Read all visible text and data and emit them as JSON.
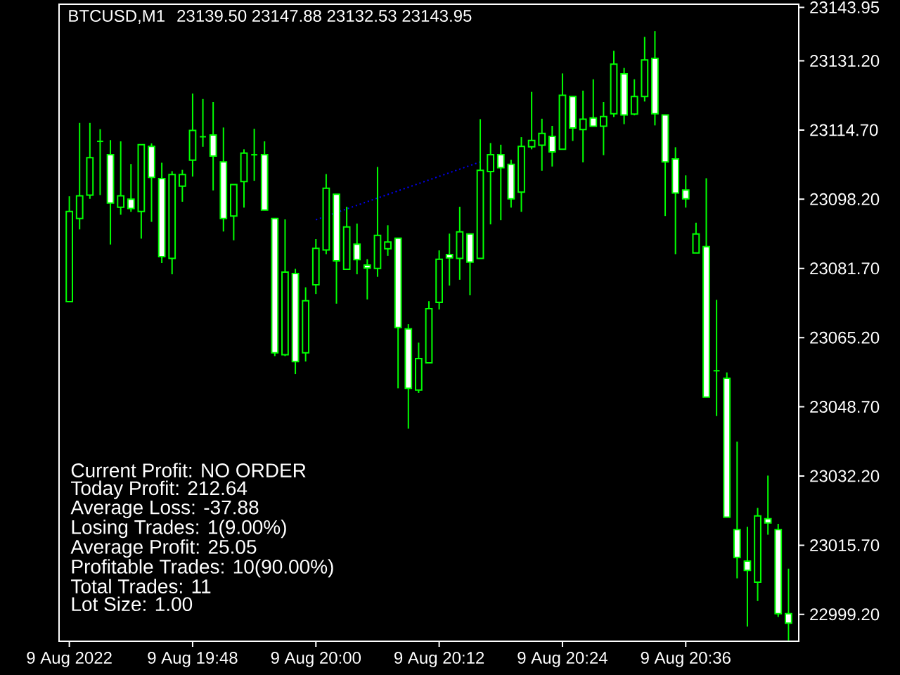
{
  "chart_data": {
    "type": "candlestick",
    "title": "BTCUSD,M1",
    "subtitle": "23139.50 23147.88 23132.53 23143.95",
    "color": "#00ff00",
    "x": [
      "2022-08-09T19:36",
      "2022-08-09T19:37",
      "2022-08-09T19:38",
      "2022-08-09T19:39",
      "2022-08-09T19:40",
      "2022-08-09T19:41",
      "2022-08-09T19:42",
      "2022-08-09T19:43",
      "2022-08-09T19:44",
      "2022-08-09T19:45",
      "2022-08-09T19:46",
      "2022-08-09T19:47",
      "2022-08-09T19:48",
      "2022-08-09T19:49",
      "2022-08-09T19:50",
      "2022-08-09T19:51",
      "2022-08-09T19:52",
      "2022-08-09T19:53",
      "2022-08-09T19:54",
      "2022-08-09T19:55",
      "2022-08-09T19:56",
      "2022-08-09T19:57",
      "2022-08-09T19:58",
      "2022-08-09T19:59",
      "2022-08-09T20:00",
      "2022-08-09T20:01",
      "2022-08-09T20:02",
      "2022-08-09T20:03",
      "2022-08-09T20:04",
      "2022-08-09T20:05",
      "2022-08-09T20:06",
      "2022-08-09T20:07",
      "2022-08-09T20:08",
      "2022-08-09T20:09",
      "2022-08-09T20:10",
      "2022-08-09T20:11",
      "2022-08-09T20:12",
      "2022-08-09T20:13",
      "2022-08-09T20:14",
      "2022-08-09T20:15",
      "2022-08-09T20:16",
      "2022-08-09T20:17",
      "2022-08-09T20:18",
      "2022-08-09T20:19",
      "2022-08-09T20:20",
      "2022-08-09T20:21",
      "2022-08-09T20:22",
      "2022-08-09T20:23",
      "2022-08-09T20:24",
      "2022-08-09T20:25",
      "2022-08-09T20:26",
      "2022-08-09T20:27",
      "2022-08-09T20:28",
      "2022-08-09T20:29",
      "2022-08-09T20:30",
      "2022-08-09T20:31",
      "2022-08-09T20:32",
      "2022-08-09T20:33",
      "2022-08-09T20:34",
      "2022-08-09T20:35",
      "2022-08-09T20:36",
      "2022-08-09T20:37",
      "2022-08-09T20:38",
      "2022-08-09T20:39",
      "2022-08-09T20:40",
      "2022-08-09T20:41",
      "2022-08-09T20:42",
      "2022-08-09T20:43",
      "2022-08-09T20:44",
      "2022-08-09T20:45",
      "2022-08-09T20:46"
    ],
    "ohlc": [
      [
        23073.8,
        23098.9,
        23073.8,
        23095.3
      ],
      [
        23093.6,
        23116.4,
        23091.0,
        23099.0
      ],
      [
        23099.2,
        23116.4,
        23098.3,
        23108.1
      ],
      [
        23112.0,
        23114.9,
        23099.2,
        23112.0
      ],
      [
        23108.8,
        23112.3,
        23087.4,
        23097.3
      ],
      [
        23096.3,
        23112.0,
        23094.5,
        23099.0
      ],
      [
        23098.2,
        23106.6,
        23095.2,
        23096.0
      ],
      [
        23095.3,
        23111.2,
        23088.8,
        23111.2
      ],
      [
        23110.8,
        23111.5,
        23092.8,
        23103.4
      ],
      [
        23103.1,
        23106.9,
        23083.0,
        23084.5
      ],
      [
        23084.1,
        23104.9,
        23080.3,
        23104.1
      ],
      [
        23101.3,
        23105.2,
        23097.6,
        23104.1
      ],
      [
        23107.5,
        23123.4,
        23103.6,
        23114.6
      ],
      [
        23113.1,
        23122.1,
        23110.7,
        23113.1
      ],
      [
        23113.5,
        23121.4,
        23100.3,
        23108.5
      ],
      [
        23107.1,
        23115.3,
        23090.5,
        23093.6
      ],
      [
        23094.2,
        23101.7,
        23088.4,
        23101.7
      ],
      [
        23102.4,
        23110.1,
        23096.2,
        23109.2
      ],
      [
        23108.8,
        23115.0,
        23102.6,
        23108.8
      ],
      [
        23108.8,
        23112.0,
        23095.6,
        23095.6
      ],
      [
        23093.6,
        23093.6,
        23060.8,
        23061.6
      ],
      [
        23061.1,
        23093.4,
        23060.8,
        23080.8
      ],
      [
        23080.5,
        23081.6,
        23056.5,
        23059.5
      ],
      [
        23061.6,
        23077.2,
        23059.5,
        23074.0
      ],
      [
        23077.8,
        23088.7,
        23075.6,
        23086.5
      ],
      [
        23086.1,
        23104.2,
        23085.1,
        23100.8
      ],
      [
        23099.4,
        23099.4,
        23073.3,
        23083.5
      ],
      [
        23081.5,
        23096.4,
        23081.5,
        23091.6
      ],
      [
        23087.5,
        23092.4,
        23080.3,
        23083.8
      ],
      [
        23082.5,
        23083.9,
        23074.3,
        23081.8
      ],
      [
        23081.7,
        23105.9,
        23079.7,
        23089.6
      ],
      [
        23086.4,
        23092.0,
        23084.7,
        23088.0
      ],
      [
        23088.9,
        23088.9,
        23053.1,
        23067.6
      ],
      [
        23067.3,
        23068.4,
        23043.5,
        23053.1
      ],
      [
        23052.7,
        23064.0,
        23052.0,
        23060.2
      ],
      [
        23059.2,
        23073.9,
        23059.2,
        23072.1
      ],
      [
        23073.6,
        23086.0,
        23071.9,
        23083.9
      ],
      [
        23085.0,
        23090.0,
        23077.6,
        23084.2
      ],
      [
        23084.1,
        23096.4,
        23079.0,
        23090.4
      ],
      [
        23089.9,
        23089.9,
        23075.3,
        23083.2
      ],
      [
        23084.1,
        23117.3,
        23084.1,
        23105.1
      ],
      [
        23104.8,
        23111.6,
        23092.2,
        23108.8
      ],
      [
        23108.8,
        23111.2,
        23093.2,
        23105.7
      ],
      [
        23106.5,
        23107.6,
        23096.2,
        23098.3
      ],
      [
        23099.9,
        23113.0,
        23095.2,
        23110.8
      ],
      [
        23110.7,
        23123.8,
        23110.1,
        23112.2
      ],
      [
        23111.1,
        23117.4,
        23105.0,
        23113.9
      ],
      [
        23113.2,
        23115.7,
        23106.0,
        23109.5
      ],
      [
        23110.1,
        23128.2,
        23110.1,
        23123.0
      ],
      [
        23122.7,
        23122.7,
        23112.1,
        23115.2
      ],
      [
        23114.8,
        23124.1,
        23107.0,
        23117.3
      ],
      [
        23117.6,
        23126.8,
        23115.6,
        23115.6
      ],
      [
        23115.6,
        23121.4,
        23108.7,
        23117.9
      ],
      [
        23118.6,
        23133.6,
        23117.8,
        23130.4
      ],
      [
        23128.1,
        23129.5,
        23116.1,
        23118.3
      ],
      [
        23118.5,
        23126.8,
        23118.2,
        23122.7
      ],
      [
        23122.7,
        23136.9,
        23121.5,
        23131.4
      ],
      [
        23131.8,
        23138.3,
        23115.8,
        23118.6
      ],
      [
        23118.3,
        23118.3,
        23094.2,
        23107.1
      ],
      [
        23107.8,
        23110.6,
        23085.1,
        23099.7
      ],
      [
        23100.4,
        23103.9,
        23096.2,
        23098.3
      ],
      [
        23085.4,
        23092.6,
        23085.4,
        23089.9
      ],
      [
        23086.9,
        23103.2,
        23051.0,
        23051.0
      ],
      [
        23057.3,
        23074.2,
        23046.5,
        23057.3
      ],
      [
        23055.5,
        23056.9,
        23022.4,
        23022.4
      ],
      [
        23019.4,
        23040.4,
        23007.8,
        23012.8
      ],
      [
        23011.9,
        23020.1,
        22996.3,
        23009.7
      ],
      [
        23006.9,
        23024.6,
        23002.4,
        23022.7
      ],
      [
        23022.0,
        23032.3,
        23018.2,
        23021.0
      ],
      [
        23019.4,
        23020.8,
        22998.6,
        22999.4
      ],
      [
        22999.4,
        23010.1,
        22993.0,
        22997.1
      ]
    ],
    "series": [
      {
        "type": "line",
        "color": "#0000ff",
        "line_style": "dotted",
        "x": [
          "2022-08-09T20:00",
          "2022-08-09T20:16"
        ],
        "values": [
          23093.3,
          23107.1
        ]
      }
    ],
    "xlim": [
      "2022-08-09T19:35",
      "2022-08-09T20:47"
    ],
    "xticks": [
      {
        "value": "2022-08-09T19:36",
        "label": "9 Aug 2022"
      },
      {
        "value": "2022-08-09T19:48",
        "label": "9 Aug 19:48"
      },
      {
        "value": "2022-08-09T20:00",
        "label": "9 Aug 20:00"
      },
      {
        "value": "2022-08-09T20:12",
        "label": "9 Aug 20:12"
      },
      {
        "value": "2022-08-09T20:24",
        "label": "9 Aug 20:24"
      },
      {
        "value": "2022-08-09T20:36",
        "label": "9 Aug 20:36"
      }
    ],
    "ylim": [
      22992.8,
      23144.7
    ],
    "yticks": [
      {
        "value": 22999.2,
        "label": "22999.20"
      },
      {
        "value": 23015.7,
        "label": "23015.70"
      },
      {
        "value": 23032.2,
        "label": "23032.20"
      },
      {
        "value": 23048.7,
        "label": "23048.70"
      },
      {
        "value": 23065.2,
        "label": "23065.20"
      },
      {
        "value": 23081.7,
        "label": "23081.70"
      },
      {
        "value": 23098.2,
        "label": "23098.20"
      },
      {
        "value": 23114.7,
        "label": "23114.70"
      },
      {
        "value": 23131.2,
        "label": "23131.20"
      },
      {
        "value": 23143.95,
        "label": "23143.95"
      }
    ],
    "annotations": [
      "Current Profit: NO ORDER",
      "Today Profit: 212.64",
      "Average Loss: -37.88",
      "Losing  Trades: 1(9.00%)",
      "Average Profit: 25.05",
      "Profitable Trades: 10(90.00%)",
      "Total Trades: 11",
      "Lot Size: 1.00"
    ]
  }
}
